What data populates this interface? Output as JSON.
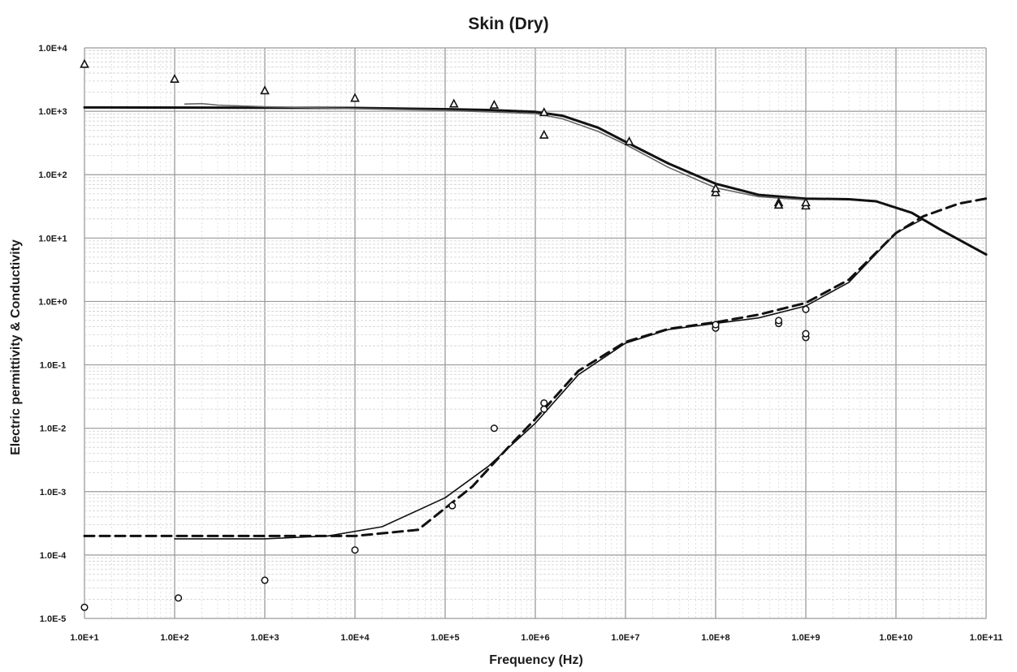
{
  "chart_data": {
    "type": "line",
    "title": "Skin (Dry)",
    "xlabel": "Frequency  (Hz)",
    "ylabel": "Electric permittivity & Conductivity",
    "x_scale": "log",
    "y_scale": "log",
    "xlim": [
      10,
      100000000000
    ],
    "ylim": [
      1e-05,
      10000
    ],
    "grid": true,
    "x_ticks": [
      "1.0E+1",
      "1.0E+2",
      "1.0E+3",
      "1.0E+4",
      "1.0E+5",
      "1.0E+6",
      "1.0E+7",
      "1.0E+8",
      "1.0E+9",
      "1.0E+10",
      "1.0E+11"
    ],
    "y_ticks": [
      "1.0E+4",
      "1.0E+3",
      "1.0E+2",
      "1.0E+1",
      "1.0E+0",
      "1.0E-1",
      "1.0E-2",
      "1.0E-3",
      "1.0E-4",
      "1.0E-5"
    ],
    "series": [
      {
        "style": "solid-thick",
        "color": "#111111",
        "points": [
          [
            10,
            1150
          ],
          [
            1000,
            1140
          ],
          [
            10000,
            1130
          ],
          [
            100000,
            1080
          ],
          [
            300000,
            1050
          ],
          [
            1000000,
            980
          ],
          [
            2000000,
            850
          ],
          [
            5000000,
            550
          ],
          [
            10000000,
            330
          ],
          [
            30000000,
            150
          ],
          [
            100000000,
            72
          ],
          [
            300000000,
            48
          ],
          [
            1000000000,
            42
          ],
          [
            3000000000,
            41
          ],
          [
            6000000000,
            38
          ],
          [
            15000000000,
            25
          ],
          [
            30000000000,
            14
          ],
          [
            100000000000,
            5.5
          ]
        ]
      },
      {
        "style": "solid-thin",
        "color": "#666666",
        "points": [
          [
            130,
            1300
          ],
          [
            200,
            1320
          ],
          [
            300,
            1250
          ],
          [
            1000,
            1180
          ],
          [
            10000,
            1100
          ],
          [
            100000,
            1030
          ],
          [
            1000000,
            920
          ],
          [
            2000000,
            760
          ],
          [
            5000000,
            480
          ],
          [
            10000000,
            300
          ],
          [
            30000000,
            130
          ],
          [
            100000000,
            62
          ],
          [
            300000000,
            45
          ],
          [
            1000000000,
            40
          ]
        ]
      },
      {
        "style": "solid-thin",
        "color": "#111111",
        "points": [
          [
            100,
            0.00018
          ],
          [
            1000,
            0.00018
          ],
          [
            5000,
            0.0002
          ],
          [
            20000,
            0.00028
          ],
          [
            100000,
            0.0008
          ],
          [
            300000,
            0.0025
          ],
          [
            1000000,
            0.012
          ],
          [
            3000000,
            0.07
          ],
          [
            10000000,
            0.22
          ],
          [
            30000000,
            0.36
          ],
          [
            100000000,
            0.45
          ],
          [
            300000000,
            0.55
          ],
          [
            1000000000,
            0.85
          ],
          [
            3000000000,
            2
          ],
          [
            10000000000,
            12
          ],
          [
            20000000000,
            20
          ]
        ]
      },
      {
        "style": "dashed-thick",
        "color": "#111111",
        "points": [
          [
            10,
            0.0002
          ],
          [
            1000,
            0.0002
          ],
          [
            10000,
            0.0002
          ],
          [
            50000,
            0.00025
          ],
          [
            200000,
            0.0012
          ],
          [
            500000,
            0.005
          ],
          [
            1000000,
            0.014
          ],
          [
            3000000,
            0.08
          ],
          [
            10000000,
            0.23
          ],
          [
            30000000,
            0.37
          ],
          [
            100000000,
            0.47
          ],
          [
            300000000,
            0.62
          ],
          [
            1000000000,
            0.95
          ],
          [
            3000000000,
            2.2
          ],
          [
            10000000000,
            12
          ],
          [
            20000000000,
            22
          ],
          [
            50000000000,
            35
          ],
          [
            100000000000,
            42
          ]
        ]
      },
      {
        "style": "markers-triangle",
        "color": "#111111",
        "points": [
          [
            10,
            5500
          ],
          [
            100,
            3200
          ],
          [
            1000,
            2100
          ],
          [
            10000,
            1600
          ],
          [
            125000,
            1300
          ],
          [
            350000,
            1250
          ],
          [
            1250000,
            950
          ],
          [
            1250000,
            420
          ],
          [
            11000000,
            330
          ],
          [
            100000000,
            52
          ],
          [
            100000000,
            60
          ],
          [
            500000000,
            36
          ],
          [
            500000000,
            33
          ],
          [
            1000000000,
            32
          ],
          [
            1000000000,
            36
          ]
        ]
      },
      {
        "style": "markers-circle",
        "color": "#111111",
        "points": [
          [
            10,
            1.5e-05
          ],
          [
            110,
            2.1e-05
          ],
          [
            1000,
            4e-05
          ],
          [
            10000,
            0.00012
          ],
          [
            120000,
            0.0006
          ],
          [
            350000,
            0.01
          ],
          [
            1250000,
            0.02
          ],
          [
            1250000,
            0.025
          ],
          [
            100000000,
            0.38
          ],
          [
            100000000,
            0.43
          ],
          [
            500000000,
            0.45
          ],
          [
            500000000,
            0.5
          ],
          [
            1000000000,
            0.27
          ],
          [
            1000000000,
            0.31
          ],
          [
            1000000000,
            0.75
          ]
        ]
      }
    ]
  }
}
